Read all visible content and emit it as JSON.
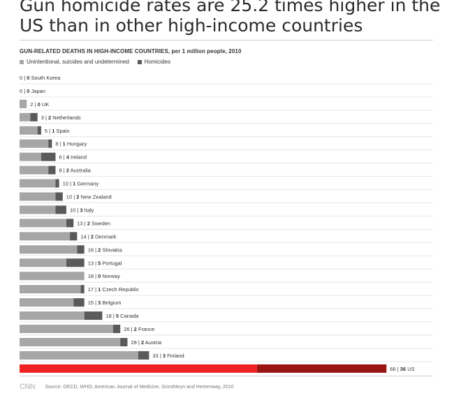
{
  "headline": "Gun homicide rates are 25.2 times higher in the US than in other high-income countries",
  "chart_data": {
    "type": "bar",
    "title": "GUN-RELATED DEATHS IN HIGH-INCOME COUNTRIES, per 1 million people, 2010",
    "orientation": "horizontal",
    "stacked": true,
    "legend": [
      "Unintentional, suicides and undetermined",
      "Homicides"
    ],
    "categories": [
      "South Korea",
      "Japan",
      "UK",
      "Netherlands",
      "Spain",
      "Hungary",
      "Ireland",
      "Australia",
      "Germany",
      "New Zealand",
      "Italy",
      "Sweden",
      "Denmark",
      "Slovakia",
      "Portugal",
      "Norway",
      "Czech Republic",
      "Belgium",
      "Canada",
      "France",
      "Austria",
      "Finland",
      "US"
    ],
    "series": [
      {
        "name": "Unintentional, suicides and undetermined",
        "color": "#a6a6a6",
        "highlight_color": "#ee2222",
        "values": [
          0,
          0,
          2,
          3,
          5,
          8,
          6,
          8,
          10,
          10,
          10,
          13,
          14,
          16,
          13,
          18,
          17,
          15,
          18,
          26,
          28,
          33,
          66
        ]
      },
      {
        "name": "Homicides",
        "color": "#5a5a5a",
        "highlight_color": "#9b1414",
        "values": [
          0,
          0,
          0,
          2,
          1,
          1,
          4,
          2,
          1,
          2,
          3,
          2,
          2,
          2,
          5,
          0,
          1,
          3,
          5,
          2,
          2,
          3,
          36
        ]
      }
    ],
    "highlight_category": "US",
    "grid": true
  },
  "legend_colors": {
    "unintentional": "#a6a6a6",
    "homicides": "#5a5a5a"
  },
  "footer": {
    "logo": "CNN",
    "source": "Source: OECD, WHO, American Journal of Medicine, Grinshteyn and Hemenway, 2010"
  }
}
